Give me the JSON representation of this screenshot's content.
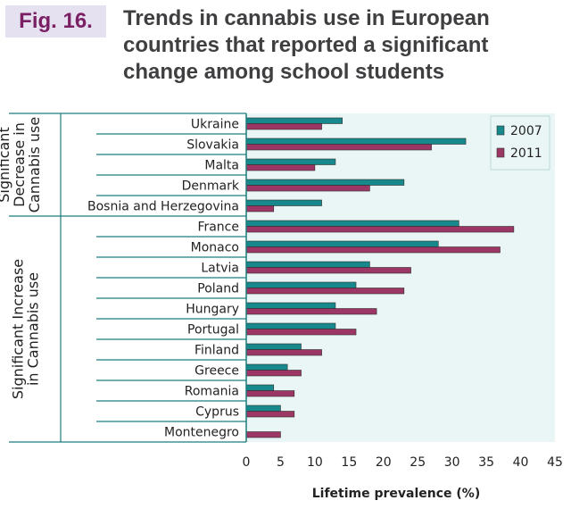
{
  "figure": {
    "label": "Fig. 16.",
    "title_lines": [
      "Trends in cannabis use in European",
      "countries that reported a significant",
      "change among school students"
    ]
  },
  "chart_data": {
    "type": "bar",
    "orientation": "horizontal",
    "xlabel": "Lifetime prevalence (%)",
    "xlim": [
      0,
      45
    ],
    "xticks": [
      0,
      5,
      10,
      15,
      20,
      25,
      30,
      35,
      40,
      45
    ],
    "categories": [
      "Ukraine",
      "Slovakia",
      "Malta",
      "Denmark",
      "Bosnia and Herzegovina",
      "France",
      "Monaco",
      "Latvia",
      "Poland",
      "Hungary",
      "Portugal",
      "Finland",
      "Greece",
      "Romania",
      "Cyprus",
      "Montenegro"
    ],
    "groups": [
      {
        "label_lines": [
          "Significant",
          "Decrease in",
          "Cannabis use"
        ],
        "categories": [
          "Ukraine",
          "Slovakia",
          "Malta",
          "Denmark",
          "Bosnia and Herzegovina"
        ]
      },
      {
        "label_lines": [
          "Significant Increase",
          "in Cannabis use"
        ],
        "categories": [
          "France",
          "Monaco",
          "Latvia",
          "Poland",
          "Hungary",
          "Portugal",
          "Finland",
          "Greece",
          "Romania",
          "Cyprus",
          "Montenegro"
        ]
      }
    ],
    "series": [
      {
        "name": "2007",
        "color": "#17898d",
        "values": [
          14,
          32,
          13,
          23,
          11,
          31,
          28,
          18,
          16,
          13,
          13,
          8,
          6,
          4,
          5,
          null
        ]
      },
      {
        "name": "2011",
        "color": "#9c3665",
        "values": [
          11,
          27,
          10,
          18,
          4,
          39,
          37,
          24,
          23,
          19,
          16,
          11,
          8,
          7,
          7,
          5
        ]
      }
    ],
    "legend_position": "top-right",
    "grid": false,
    "colors": {
      "plot_background": "#e9f6f5",
      "axis_lines": "#1e7c7f",
      "title": "#3f3f41",
      "badge_text": "#7a1f63",
      "badge_background": "#e6e1f1"
    }
  }
}
